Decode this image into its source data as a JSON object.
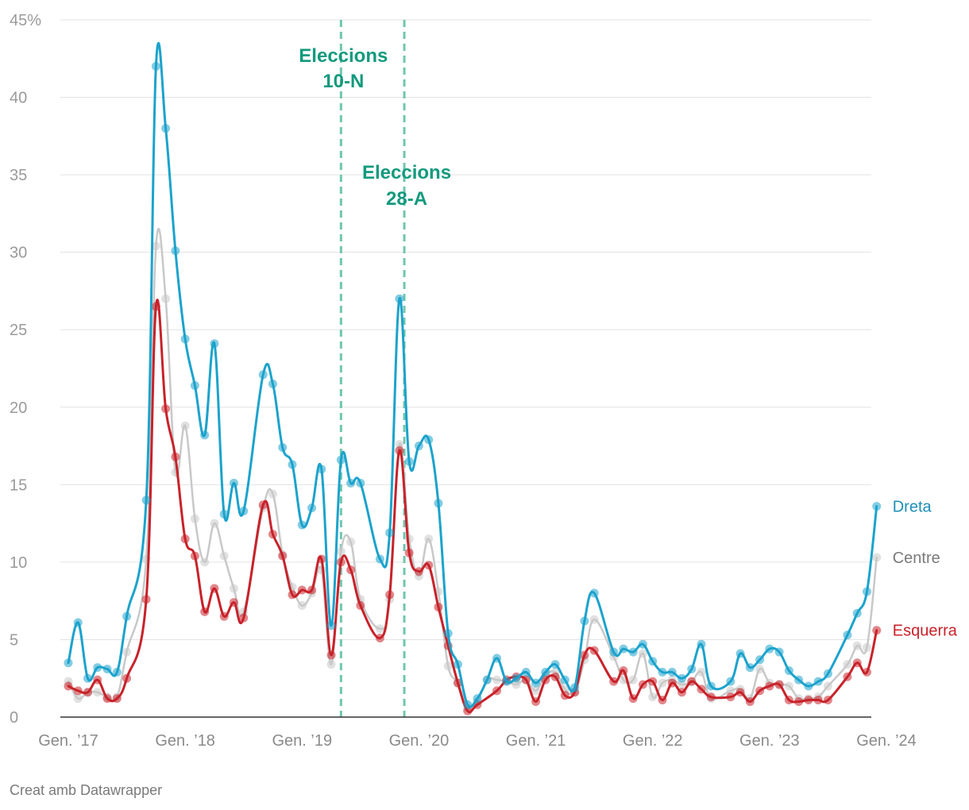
{
  "chart_data": {
    "type": "line",
    "ylim": [
      0,
      45
    ],
    "y_ticks": [
      "0",
      "5",
      "10",
      "15",
      "20",
      "25",
      "30",
      "35",
      "40",
      "45%"
    ],
    "x_tick_labels": [
      "Gen. ’17",
      "Gen. ’18",
      "Gen. ’19",
      "Gen. ’20",
      "Gen. ’21",
      "Gen. ’22",
      "Gen. ’23",
      "Gen. ’24"
    ],
    "x_range_months": [
      0,
      84
    ],
    "grid": true,
    "colors": {
      "Dreta": "#1ba3cc",
      "Centre": "#c8c8c8",
      "Esquerra": "#c8222a",
      "annotation": "#6fc6ad"
    },
    "series": [
      {
        "name": "Dreta",
        "label_color": "#1c8fb8",
        "values": [
          3.5,
          6.1,
          2.5,
          3.2,
          3.1,
          2.9,
          6.5,
          null,
          14,
          42,
          38,
          30.1,
          24.4,
          21.4,
          18.2,
          24.1,
          13.1,
          15.1,
          13.3,
          null,
          22.1,
          21.5,
          17.4,
          16.3,
          12.4,
          13.5,
          16,
          5.9,
          16.6,
          15.1,
          15.1,
          null,
          10.2,
          11.9,
          27,
          16.5,
          17.5,
          17.9,
          13.8,
          5.4,
          3.4,
          0.8,
          1.2,
          2.4,
          3.8,
          2.3,
          2.5,
          2.9,
          2.2,
          2.9,
          3.4,
          2.4,
          1.9,
          6.2,
          8,
          null,
          4.2,
          4.4,
          4.2,
          4.7,
          3.6,
          2.9,
          2.9,
          2.5,
          3.1,
          4.7,
          2,
          null,
          2.3,
          4.1,
          3.2,
          3.7,
          4.4,
          4.2,
          3,
          2.4,
          2,
          2.3,
          2.8,
          null,
          5.3,
          6.7,
          8.1,
          13.6
        ]
      },
      {
        "name": "Centre",
        "label_color": "#7a7a7a",
        "values": [
          2.3,
          1.2,
          1.6,
          1.6,
          1.3,
          1.3,
          4.2,
          null,
          10.2,
          30.4,
          27,
          15.8,
          18.8,
          12.8,
          10,
          12.5,
          10.4,
          8.3,
          6.8,
          null,
          13.5,
          14.4,
          10.5,
          8.4,
          7.2,
          8,
          9.5,
          3.4,
          10.7,
          11.3,
          7.6,
          null,
          5.7,
          7.6,
          17.6,
          11.5,
          9.1,
          11.5,
          8.1,
          3.3,
          2.2,
          0.6,
          1,
          2.4,
          2.4,
          2.3,
          2.1,
          2.4,
          1.7,
          2.7,
          2.9,
          1.8,
          1.6,
          3.7,
          6.3,
          null,
          3.9,
          2.4,
          2.4,
          4.1,
          1.3,
          2.2,
          2.4,
          2.1,
          2.3,
          2.9,
          1.2,
          null,
          1.7,
          1.8,
          1.2,
          3.1,
          2.2,
          2.1,
          2,
          1.2,
          1.2,
          1.3,
          2,
          null,
          3.4,
          4.6,
          4.5,
          10.3
        ]
      },
      {
        "name": "Esquerra",
        "label_color": "#c8222a",
        "values": [
          2,
          1.7,
          1.6,
          2.4,
          1.2,
          1.2,
          2.5,
          null,
          7.6,
          26.5,
          19.9,
          16.8,
          11.5,
          10.4,
          6.8,
          8.3,
          6.5,
          7.4,
          6.4,
          null,
          13.7,
          11.8,
          10.4,
          7.9,
          8.2,
          8.2,
          10.2,
          4,
          10,
          9.5,
          7.2,
          null,
          5.1,
          7.9,
          17.2,
          10.6,
          9.4,
          9.8,
          7.1,
          4.6,
          2.2,
          0.4,
          0.8,
          null,
          1.7,
          2.4,
          2.6,
          2.4,
          1,
          2.4,
          2.6,
          1.4,
          1.6,
          4,
          4.3,
          null,
          2.3,
          3,
          1.2,
          2.1,
          2.3,
          1.1,
          2.2,
          1.6,
          2.3,
          1.8,
          1.3,
          null,
          1.3,
          1.6,
          1,
          1.7,
          2,
          2.1,
          1.1,
          1,
          1.1,
          1.1,
          1.1,
          null,
          2.6,
          3.5,
          2.9,
          5.6
        ]
      }
    ],
    "annotations": [
      {
        "label_line1": "Eleccions",
        "label_line2": "10-N",
        "month": 28
      },
      {
        "label_line1": "Eleccions",
        "label_line2": "28-A",
        "month": 34.5
      }
    ]
  },
  "credit": "Creat amb Datawrapper"
}
